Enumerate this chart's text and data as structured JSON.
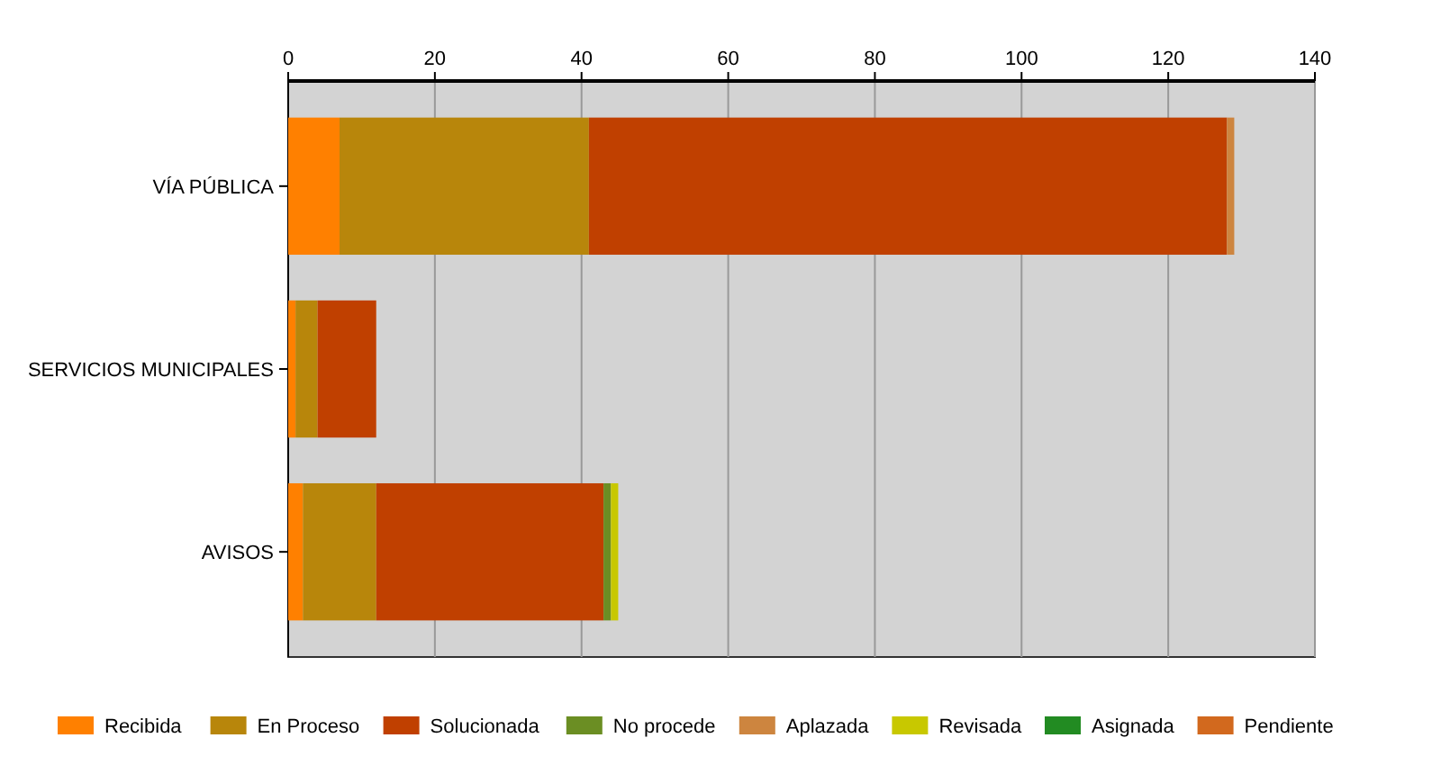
{
  "chart_data": {
    "type": "bar",
    "orientation": "horizontal",
    "stacked": true,
    "categories": [
      "VÍA PÚBLICA",
      "SERVICIOS MUNICIPALES",
      "AVISOS"
    ],
    "series": [
      {
        "name": "Recibida",
        "color": "#ff8000",
        "values": [
          7,
          1,
          2
        ]
      },
      {
        "name": "En Proceso",
        "color": "#b8860b",
        "values": [
          34,
          3,
          10
        ]
      },
      {
        "name": "Solucionada",
        "color": "#c04000",
        "values": [
          87,
          8,
          31
        ]
      },
      {
        "name": "No procede",
        "color": "#6b8e23",
        "values": [
          0,
          0,
          1
        ]
      },
      {
        "name": "Aplazada",
        "color": "#cd853f",
        "values": [
          1,
          0,
          0
        ]
      },
      {
        "name": "Revisada",
        "color": "#c8c800",
        "values": [
          0,
          0,
          1
        ]
      },
      {
        "name": "Asignada",
        "color": "#228b22",
        "values": [
          0,
          0,
          0
        ]
      },
      {
        "name": "Pendiente",
        "color": "#d2691e",
        "values": [
          0,
          0,
          0
        ]
      }
    ],
    "xlim": [
      0,
      140
    ],
    "xticks": [
      0,
      20,
      40,
      60,
      80,
      100,
      120,
      140
    ],
    "grid": "x",
    "legend": "bottom"
  }
}
